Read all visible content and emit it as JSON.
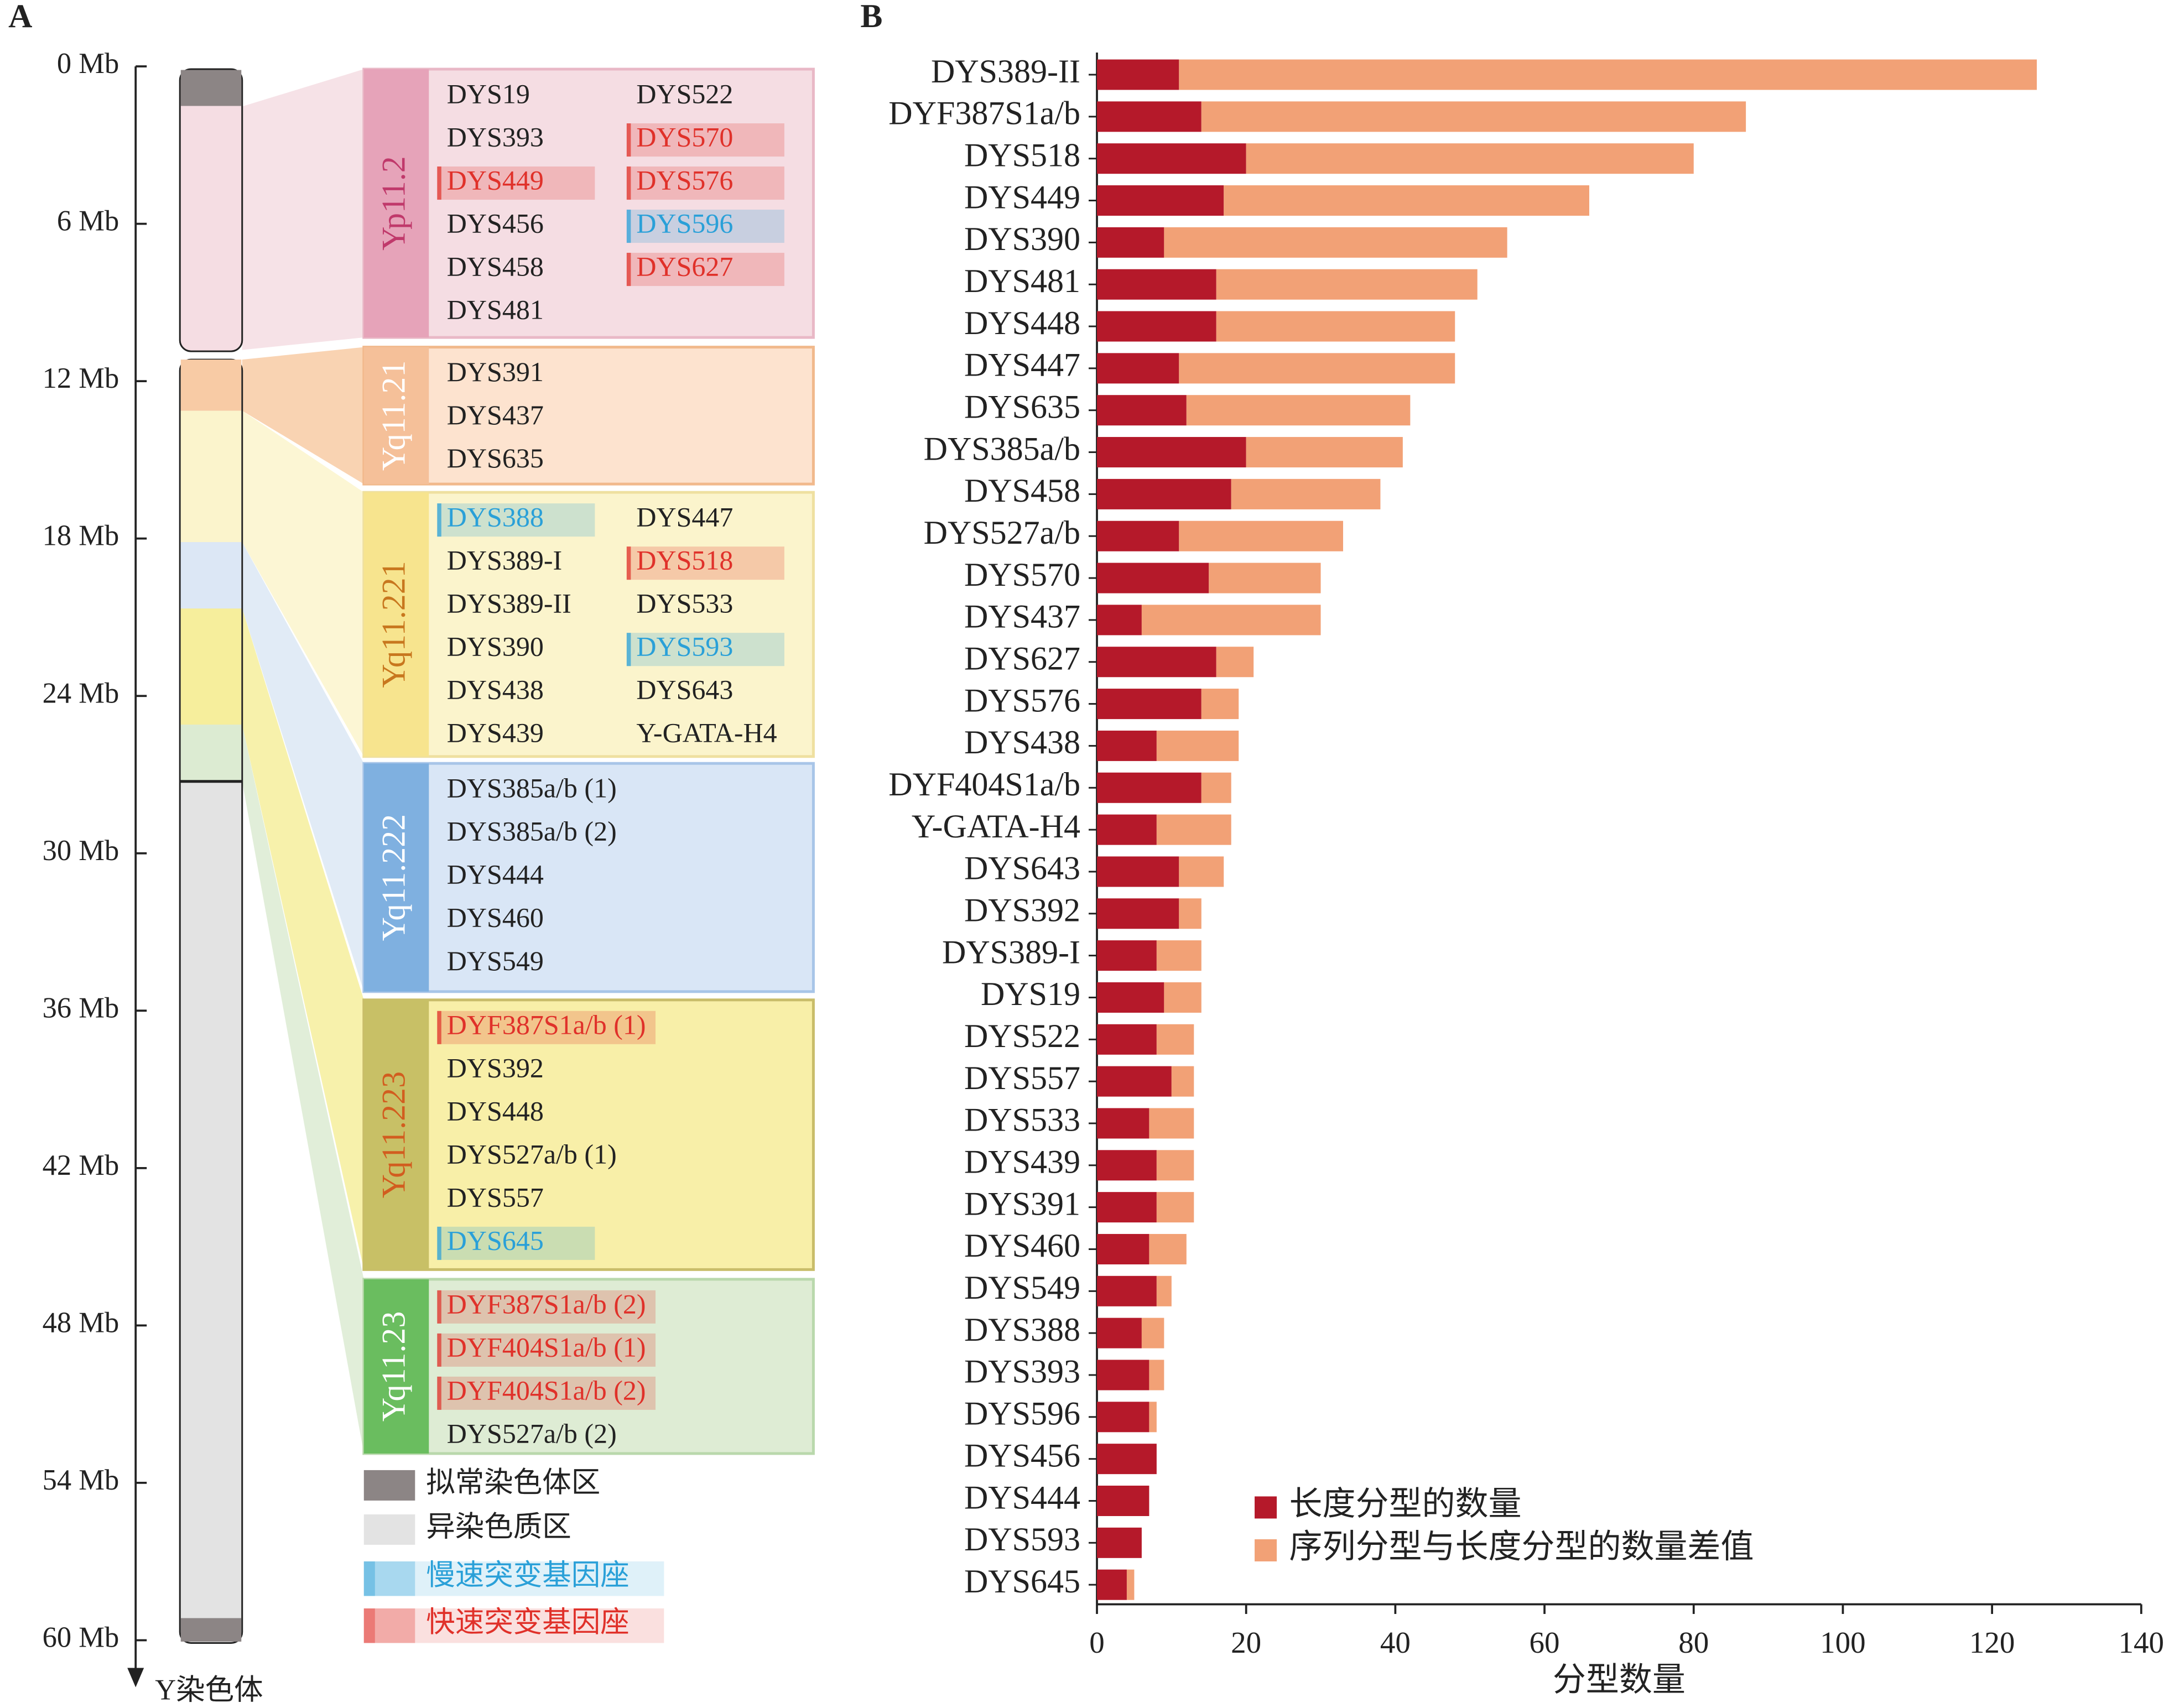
{
  "diagram": {
    "panel_label": "A",
    "axis_ticks": [
      "0 Mb",
      "6 Mb",
      "12 Mb",
      "18 Mb",
      "24 Mb",
      "30 Mb",
      "36 Mb",
      "42 Mb",
      "48 Mb",
      "54 Mb",
      "60 Mb"
    ],
    "axis_label": "Y染色体",
    "regions": [
      {
        "label": "Yp11.2",
        "columns": [
          [
            "DYS19",
            "DYS393",
            {
              "name": "DYS449",
              "color": "#e0312a"
            },
            "DYS456",
            "DYS458",
            "DYS481"
          ],
          [
            "DYS522",
            {
              "name": "DYS570",
              "color": "#e0312a"
            },
            {
              "name": "DYS576",
              "color": "#e0312a"
            },
            {
              "name": "DYS596",
              "color": "#2aa0d8"
            },
            {
              "name": "DYS627",
              "color": "#e0312a"
            }
          ]
        ]
      },
      {
        "label": "Yq11.21",
        "columns": [
          [
            "DYS391",
            "DYS437",
            "DYS635"
          ]
        ]
      },
      {
        "label": "Yq11.221",
        "columns": [
          [
            {
              "name": "DYS388",
              "color": "#2aa0d8"
            },
            "DYS389-I",
            "DYS389-II",
            "DYS390",
            "DYS438",
            "DYS439"
          ],
          [
            "DYS447",
            {
              "name": "DYS518",
              "color": "#e0312a"
            },
            "DYS533",
            {
              "name": "DYS593",
              "color": "#2aa0d8"
            },
            "DYS643",
            "Y-GATA-H4"
          ]
        ]
      },
      {
        "label": "Yq11.222",
        "columns": [
          [
            "DYS385a/b (1)",
            "DYS385a/b (2)",
            "DYS444",
            "DYS460",
            "DYS549"
          ]
        ]
      },
      {
        "label": "Yq11.223",
        "columns": [
          [
            {
              "name": "DYF387S1a/b (1)",
              "color": "#e0312a"
            },
            "DYS392",
            "DYS448",
            "DYS527a/b (1)",
            "DYS557",
            {
              "name": "DYS645",
              "color": "#2aa0d8"
            }
          ]
        ]
      },
      {
        "label": "Yq11.23",
        "columns": [
          [
            {
              "name": "DYF387S1a/b (2)",
              "color": "#e0312a"
            },
            {
              "name": "DYF404S1a/b (1)",
              "color": "#e0312a"
            },
            {
              "name": "DYF404S1a/b (2)",
              "color": "#e0312a"
            },
            "DYS527a/b (2)"
          ]
        ]
      }
    ],
    "legend": [
      {
        "label": "拟常染色体区",
        "color": "#8c8585",
        "text_color": "#222222"
      },
      {
        "label": "异染色质区",
        "color": "#e3e3e3",
        "text_color": "#222222"
      },
      {
        "label": "慢速突变基因座",
        "color": "#2aa0d8",
        "text_color": "#2aa0d8"
      },
      {
        "label": "快速突变基因座",
        "color": "#e0312a",
        "text_color": "#e0312a"
      }
    ]
  },
  "chart_data": {
    "type": "bar",
    "orientation": "horizontal",
    "stacked": true,
    "panel_label": "B",
    "categories": [
      "DYS389-II",
      "DYF387S1a/b",
      "DYS518",
      "DYS449",
      "DYS390",
      "DYS481",
      "DYS448",
      "DYS447",
      "DYS635",
      "DYS385a/b",
      "DYS458",
      "DYS527a/b",
      "DYS570",
      "DYS437",
      "DYS627",
      "DYS576",
      "DYS438",
      "DYF404S1a/b",
      "Y-GATA-H4",
      "DYS643",
      "DYS392",
      "DYS389-I",
      "DYS19",
      "DYS522",
      "DYS557",
      "DYS533",
      "DYS439",
      "DYS391",
      "DYS460",
      "DYS549",
      "DYS388",
      "DYS393",
      "DYS596",
      "DYS456",
      "DYS444",
      "DYS593",
      "DYS645"
    ],
    "series": [
      {
        "name": "长度分型的数量",
        "color": "#b5192a",
        "values": [
          11,
          14,
          20,
          17,
          9,
          16,
          16,
          11,
          12,
          20,
          18,
          11,
          15,
          6,
          16,
          14,
          8,
          14,
          8,
          11,
          11,
          8,
          9,
          8,
          10,
          7,
          8,
          8,
          7,
          8,
          6,
          7,
          7,
          8,
          7,
          6,
          4
        ]
      },
      {
        "name": "序列分型与长度分型的数量差值",
        "color": "#f2a176",
        "values": [
          115,
          73,
          60,
          49,
          46,
          35,
          32,
          37,
          30,
          21,
          20,
          22,
          15,
          24,
          5,
          5,
          11,
          4,
          10,
          6,
          3,
          6,
          5,
          5,
          3,
          6,
          5,
          5,
          5,
          2,
          3,
          2,
          1,
          0,
          0,
          0,
          1
        ]
      }
    ],
    "xlim": [
      0,
      140
    ],
    "xticks": [
      0,
      20,
      40,
      60,
      80,
      100,
      120,
      140
    ],
    "xlabel": "分型数量"
  }
}
